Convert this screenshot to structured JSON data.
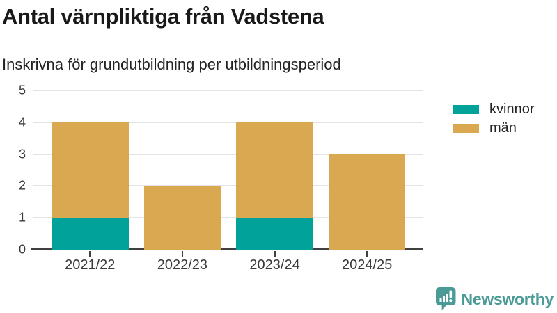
{
  "title": "Antal värnpliktiga från Vadstena",
  "subtitle": "Inskrivna för grundutbildning per utbildningsperiod",
  "chart_data": {
    "type": "bar",
    "stacked": true,
    "title": "Antal värnpliktiga från Vadstena",
    "subtitle": "Inskrivna för grundutbildning per utbildningsperiod",
    "categories": [
      "2021/22",
      "2022/23",
      "2023/24",
      "2024/25"
    ],
    "series": [
      {
        "name": "kvinnor",
        "color": "#00a29a",
        "values": [
          1,
          0,
          1,
          0
        ]
      },
      {
        "name": "män",
        "color": "#d9a851",
        "values": [
          3,
          2,
          3,
          3
        ]
      }
    ],
    "totals": [
      4,
      2,
      4,
      3
    ],
    "xlabel": "",
    "ylabel": "",
    "ylim": [
      0,
      5
    ],
    "yticks": [
      0,
      1,
      2,
      3,
      4,
      5
    ],
    "grid": true,
    "legend_position": "right"
  },
  "branding": {
    "label": "Newsworthy",
    "color": "#4a9a96"
  }
}
